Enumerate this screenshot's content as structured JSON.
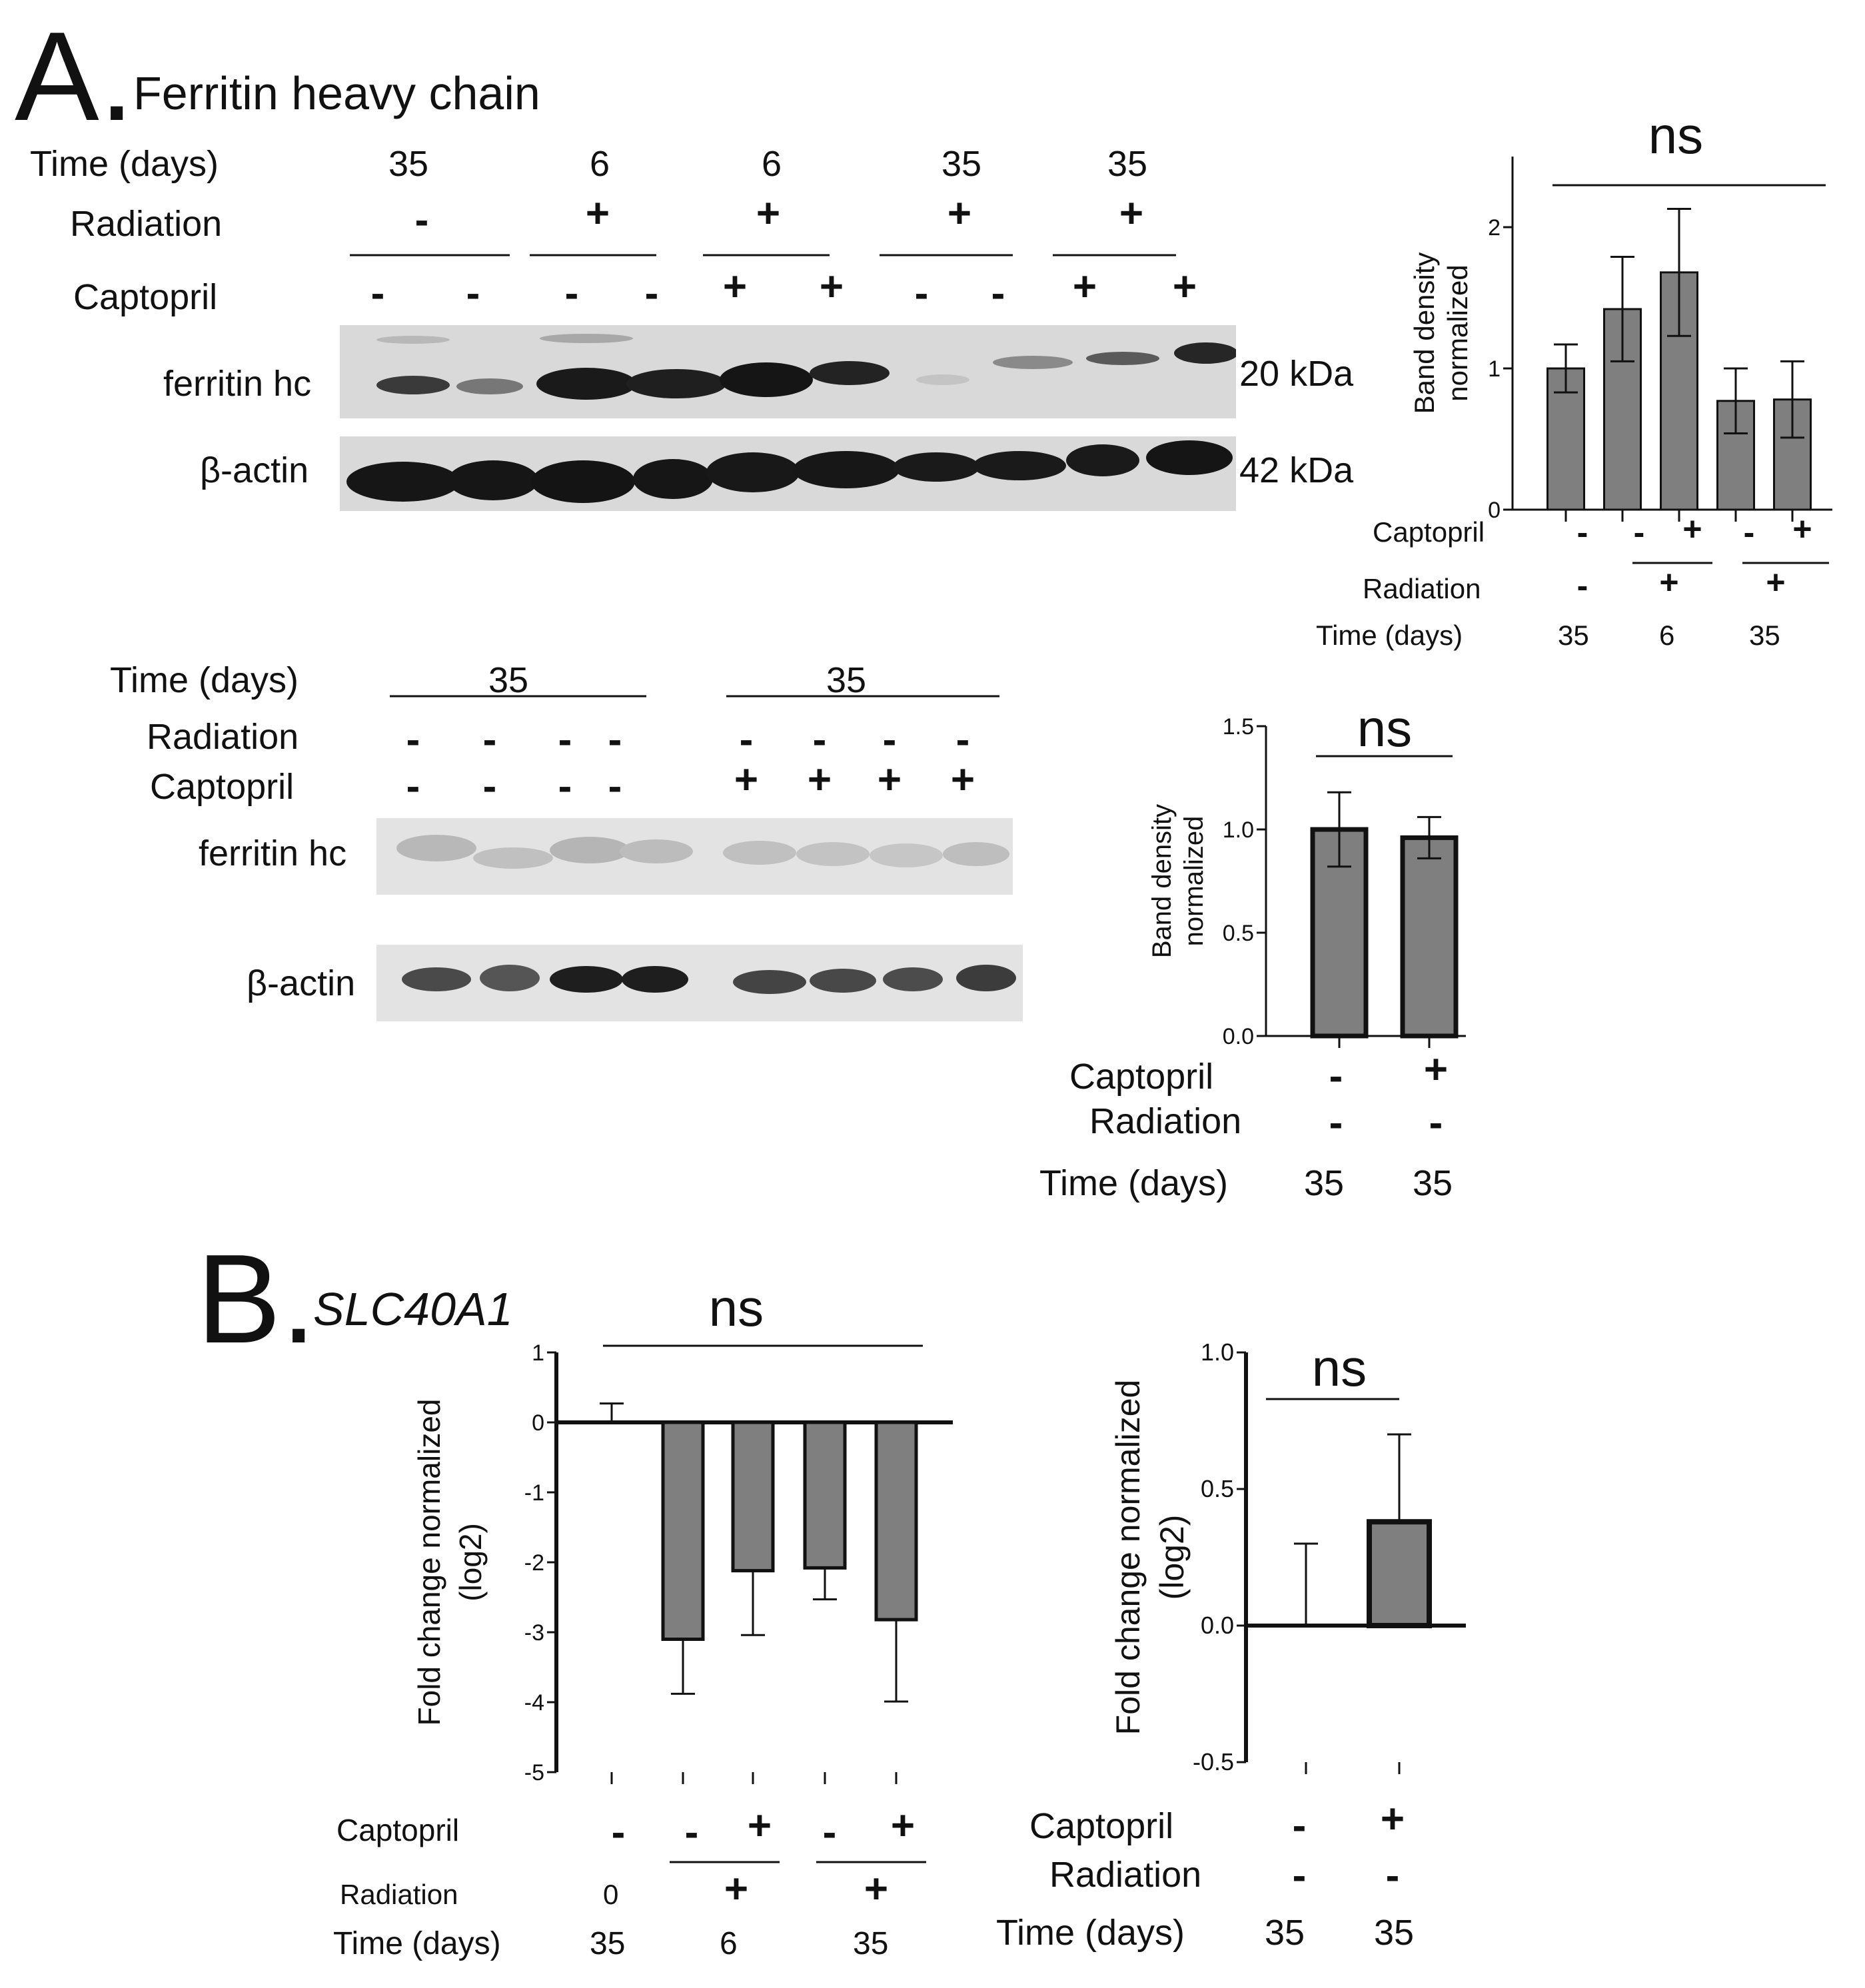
{
  "panel_a": {
    "letter": "A.",
    "title": "Ferritin heavy chain",
    "blot1": {
      "row_labels": {
        "time": "Time (days)",
        "radiation": "Radiation",
        "captopril": "Captopril"
      },
      "time_values": [
        "35",
        "6",
        "6",
        "35",
        "35"
      ],
      "radiation_values": [
        "-",
        "+",
        "+",
        "+",
        "+"
      ],
      "captopril_values": [
        "-",
        "-",
        "-",
        "-",
        "+",
        "+",
        "-",
        "-",
        "+",
        "+"
      ],
      "bands": [
        "ferritin hc",
        "β-actin"
      ],
      "markers": [
        "20 kDa",
        "42 kDa"
      ]
    },
    "blot2": {
      "row_labels": {
        "time": "Time (days)",
        "radiation": "Radiation",
        "captopril": "Captopril"
      },
      "time_values": [
        "35",
        "35"
      ],
      "radiation_values": [
        "-",
        "-",
        "-",
        "-",
        "-",
        "-",
        "-",
        "-"
      ],
      "captopril_values": [
        "-",
        "-",
        "-",
        "-",
        "+",
        "+",
        "+",
        "+"
      ],
      "bands": [
        "ferritin hc",
        "β-actin"
      ]
    },
    "chart1_labels": {
      "captopril_label": "Captopril",
      "radiation_label": "Radiation",
      "time_label": "Time (days)",
      "captopril": [
        "-",
        "-",
        "+",
        "-",
        "+"
      ],
      "radiation": [
        "-",
        "+",
        "+"
      ],
      "time": [
        "35",
        "6",
        "35"
      ]
    },
    "chart2_labels": {
      "captopril_label": "Captopril",
      "radiation_label": "Radiation",
      "time_label": "Time (days)",
      "captopril": [
        "-",
        "+"
      ],
      "radiation": [
        "-",
        "-"
      ],
      "time": [
        "35",
        "35"
      ]
    }
  },
  "panel_b": {
    "letter": "B.",
    "title": "SLC40A1",
    "chart3_labels": {
      "captopril_label": "Captopril",
      "radiation_label": "Radiation",
      "time_label": "Time (days)",
      "captopril": [
        "-",
        "-",
        "+",
        "-",
        "+"
      ],
      "radiation": [
        "0",
        "+",
        "+"
      ],
      "time": [
        "35",
        "6",
        "35"
      ]
    },
    "chart4_labels": {
      "captopril_label": "Captopril",
      "radiation_label": "Radiation",
      "time_label": "Time (days)",
      "captopril": [
        "-",
        "+"
      ],
      "radiation": [
        "-",
        "-"
      ],
      "time": [
        "35",
        "35"
      ]
    }
  },
  "chart_data": [
    {
      "type": "bar",
      "ylabel": "Band density normalized",
      "ylim": [
        0,
        2.5
      ],
      "yticks": [
        "0",
        "1",
        "2"
      ],
      "annotation": "ns",
      "series": [
        {
          "values": [
            1.0,
            1.42,
            1.68,
            0.77,
            0.78
          ],
          "errors": [
            0.17,
            0.37,
            0.45,
            0.23,
            0.27
          ]
        }
      ],
      "bar_color": "#7f7f7f"
    },
    {
      "type": "bar",
      "ylabel": "Band density normalized",
      "ylim": [
        0,
        1.5
      ],
      "yticks": [
        "0.0",
        "0.5",
        "1.0",
        "1.5"
      ],
      "annotation": "ns",
      "series": [
        {
          "values": [
            1.0,
            0.96
          ],
          "errors": [
            0.18,
            0.1
          ]
        }
      ],
      "bar_color": "#7f7f7f"
    },
    {
      "type": "bar",
      "ylabel": "Fold change normalized",
      "ylabel2": "(log2)",
      "ylim": [
        -5,
        1
      ],
      "yticks": [
        "1",
        "0",
        "-1",
        "-2",
        "-3",
        "-4",
        "-5"
      ],
      "annotation": "ns",
      "series": [
        {
          "values": [
            0.0,
            -3.1,
            -2.12,
            -2.08,
            -2.82
          ],
          "errors": [
            0.27,
            0.78,
            0.92,
            0.45,
            1.17
          ]
        }
      ],
      "bar_color": "#7f7f7f"
    },
    {
      "type": "bar",
      "ylabel": "Fold change normalized",
      "ylabel2": "(log2)",
      "ylim": [
        -0.5,
        1.0
      ],
      "yticks": [
        "1.0",
        "0.5",
        "0.0",
        "-0.5"
      ],
      "annotation": "ns",
      "series": [
        {
          "values": [
            0.0,
            0.38
          ],
          "errors": [
            0.3,
            0.32
          ]
        }
      ],
      "bar_color": "#7f7f7f"
    }
  ]
}
